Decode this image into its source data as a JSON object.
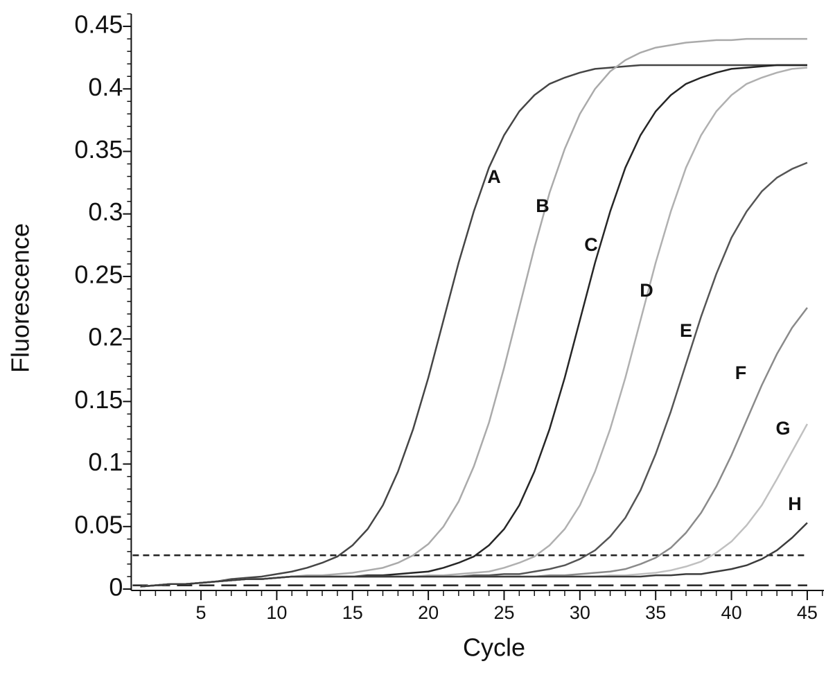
{
  "chart_data": {
    "type": "line",
    "xlabel": "Cycle",
    "ylabel": "Fluorescence",
    "x": [
      1,
      2,
      3,
      4,
      5,
      6,
      7,
      8,
      9,
      10,
      11,
      12,
      13,
      14,
      15,
      16,
      17,
      18,
      19,
      20,
      21,
      22,
      23,
      24,
      25,
      26,
      27,
      28,
      29,
      30,
      31,
      32,
      33,
      34,
      35,
      36,
      37,
      38,
      39,
      40,
      41,
      42,
      43,
      44,
      45
    ],
    "series": [
      {
        "name": "A",
        "color": "#454545",
        "values": [
          0.002,
          0.003,
          0.004,
          0.004,
          0.005,
          0.006,
          0.008,
          0.009,
          0.01,
          0.012,
          0.014,
          0.017,
          0.021,
          0.026,
          0.035,
          0.048,
          0.067,
          0.094,
          0.128,
          0.169,
          0.215,
          0.261,
          0.302,
          0.337,
          0.363,
          0.382,
          0.395,
          0.404,
          0.409,
          0.413,
          0.416,
          0.417,
          0.418,
          0.419,
          0.419,
          0.419,
          0.419,
          0.419,
          0.419,
          0.419,
          0.419,
          0.419,
          0.419,
          0.419,
          0.419
        ]
      },
      {
        "name": "B",
        "color": "#aaaaaa",
        "values": [
          0.002,
          0.003,
          0.004,
          0.004,
          0.005,
          0.006,
          0.007,
          0.008,
          0.008,
          0.009,
          0.01,
          0.011,
          0.011,
          0.012,
          0.013,
          0.015,
          0.017,
          0.021,
          0.027,
          0.036,
          0.05,
          0.07,
          0.098,
          0.133,
          0.177,
          0.225,
          0.273,
          0.317,
          0.352,
          0.38,
          0.4,
          0.414,
          0.423,
          0.429,
          0.433,
          0.435,
          0.437,
          0.438,
          0.439,
          0.439,
          0.44,
          0.44,
          0.44,
          0.44,
          0.44
        ]
      },
      {
        "name": "C",
        "color": "#262626",
        "values": [
          0.002,
          0.003,
          0.004,
          0.004,
          0.005,
          0.006,
          0.007,
          0.008,
          0.008,
          0.009,
          0.01,
          0.01,
          0.01,
          0.01,
          0.01,
          0.011,
          0.011,
          0.012,
          0.013,
          0.014,
          0.017,
          0.021,
          0.026,
          0.035,
          0.048,
          0.067,
          0.094,
          0.128,
          0.169,
          0.215,
          0.261,
          0.302,
          0.337,
          0.363,
          0.382,
          0.395,
          0.404,
          0.409,
          0.413,
          0.416,
          0.417,
          0.418,
          0.419,
          0.419,
          0.419
        ]
      },
      {
        "name": "D",
        "color": "#b0b0b0",
        "values": [
          0.002,
          0.003,
          0.004,
          0.004,
          0.005,
          0.006,
          0.007,
          0.008,
          0.008,
          0.009,
          0.01,
          0.01,
          0.01,
          0.01,
          0.01,
          0.01,
          0.01,
          0.01,
          0.01,
          0.011,
          0.011,
          0.012,
          0.013,
          0.014,
          0.017,
          0.021,
          0.026,
          0.035,
          0.048,
          0.067,
          0.094,
          0.128,
          0.169,
          0.215,
          0.261,
          0.302,
          0.337,
          0.363,
          0.382,
          0.395,
          0.404,
          0.409,
          0.413,
          0.416,
          0.417
        ]
      },
      {
        "name": "E",
        "color": "#555555",
        "values": [
          0.002,
          0.003,
          0.004,
          0.004,
          0.005,
          0.006,
          0.007,
          0.008,
          0.008,
          0.009,
          0.01,
          0.01,
          0.01,
          0.01,
          0.01,
          0.01,
          0.01,
          0.01,
          0.01,
          0.01,
          0.01,
          0.01,
          0.011,
          0.011,
          0.012,
          0.012,
          0.014,
          0.016,
          0.019,
          0.024,
          0.031,
          0.042,
          0.057,
          0.079,
          0.108,
          0.142,
          0.18,
          0.218,
          0.252,
          0.281,
          0.302,
          0.318,
          0.329,
          0.336,
          0.341
        ]
      },
      {
        "name": "F",
        "color": "#8a8a8a",
        "values": [
          0.002,
          0.003,
          0.004,
          0.004,
          0.005,
          0.006,
          0.007,
          0.008,
          0.008,
          0.009,
          0.01,
          0.01,
          0.01,
          0.01,
          0.01,
          0.01,
          0.01,
          0.01,
          0.01,
          0.01,
          0.01,
          0.01,
          0.01,
          0.01,
          0.01,
          0.01,
          0.01,
          0.011,
          0.011,
          0.012,
          0.013,
          0.014,
          0.016,
          0.02,
          0.025,
          0.033,
          0.045,
          0.061,
          0.082,
          0.107,
          0.135,
          0.163,
          0.188,
          0.209,
          0.225
        ]
      },
      {
        "name": "G",
        "color": "#c0c0c0",
        "values": [
          0.002,
          0.003,
          0.004,
          0.004,
          0.005,
          0.006,
          0.007,
          0.008,
          0.008,
          0.009,
          0.01,
          0.01,
          0.01,
          0.01,
          0.01,
          0.01,
          0.01,
          0.01,
          0.01,
          0.01,
          0.01,
          0.01,
          0.01,
          0.01,
          0.01,
          0.01,
          0.01,
          0.01,
          0.01,
          0.01,
          0.01,
          0.011,
          0.011,
          0.012,
          0.013,
          0.015,
          0.018,
          0.022,
          0.029,
          0.038,
          0.051,
          0.067,
          0.088,
          0.11,
          0.132
        ]
      },
      {
        "name": "H",
        "color": "#3c3c3c",
        "values": [
          0.002,
          0.003,
          0.004,
          0.004,
          0.005,
          0.006,
          0.007,
          0.008,
          0.008,
          0.009,
          0.01,
          0.01,
          0.01,
          0.01,
          0.01,
          0.01,
          0.01,
          0.01,
          0.01,
          0.01,
          0.01,
          0.01,
          0.01,
          0.01,
          0.01,
          0.01,
          0.01,
          0.01,
          0.01,
          0.01,
          0.01,
          0.01,
          0.01,
          0.01,
          0.011,
          0.011,
          0.012,
          0.012,
          0.014,
          0.016,
          0.019,
          0.024,
          0.031,
          0.041,
          0.053
        ]
      }
    ],
    "hlines": [
      {
        "value": 0.027,
        "style": "short-dash"
      },
      {
        "value": 0.003,
        "style": "long-dash"
      }
    ],
    "xlim": [
      0.4,
      46.1
    ],
    "xticks": [
      5,
      10,
      15,
      20,
      25,
      30,
      35,
      40,
      45
    ],
    "ylim": [
      0,
      0.46
    ],
    "yticks": [
      0,
      0.05,
      0.1,
      0.15,
      0.2,
      0.25,
      0.3,
      0.35,
      0.4,
      0.45
    ],
    "grid": false,
    "legend": false
  }
}
